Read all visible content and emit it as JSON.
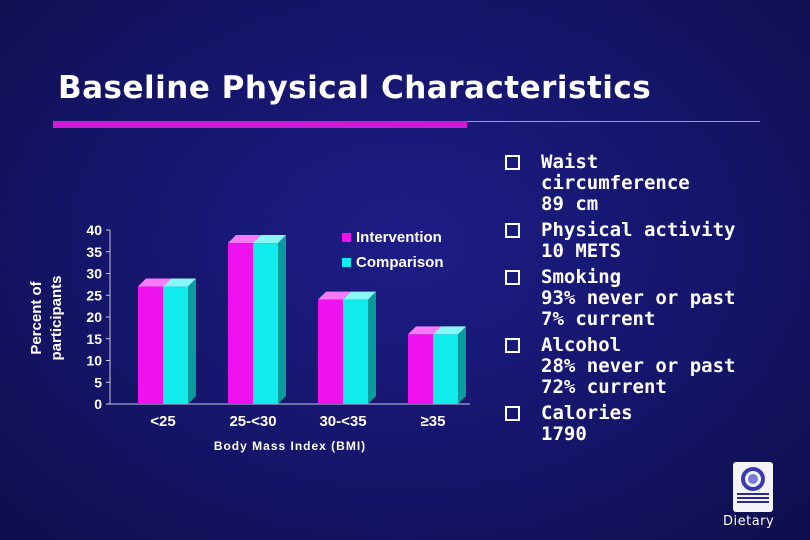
{
  "slide": {
    "title": "Baseline Physical Characteristics",
    "bullets": [
      {
        "lines": [
          "Waist",
          "circumference",
          "89 cm"
        ]
      },
      {
        "lines": [
          "Physical activity",
          "10 METS"
        ]
      },
      {
        "lines": [
          "Smoking",
          "93% never or past",
          "7% current"
        ]
      },
      {
        "lines": [
          "Alcohol",
          "28% never or past",
          "72% current"
        ]
      },
      {
        "lines": [
          "Calories",
          "1790"
        ]
      }
    ],
    "logo_label": "Dietary",
    "logo_icon": "womens-health-initiative-logo-icon"
  },
  "colors": {
    "intervention": "#ee12ee",
    "comparison": "#10ecec",
    "accent": "#d11ad6",
    "background": "#15156a"
  },
  "chart_data": {
    "type": "bar",
    "categories": [
      "<25",
      "25-<30",
      "30-<35",
      "≥35"
    ],
    "series": [
      {
        "name": "Intervention",
        "values": [
          27,
          37,
          24,
          16
        ]
      },
      {
        "name": "Comparison",
        "values": [
          27,
          37,
          24,
          16
        ]
      }
    ],
    "xlabel": "Body Mass Index (BMI)",
    "ylabel": "Percent of participants",
    "ylim": [
      0,
      40
    ],
    "yticks": [
      0,
      5,
      10,
      15,
      20,
      25,
      30,
      35,
      40
    ],
    "grid": false,
    "legend": "top-right"
  }
}
